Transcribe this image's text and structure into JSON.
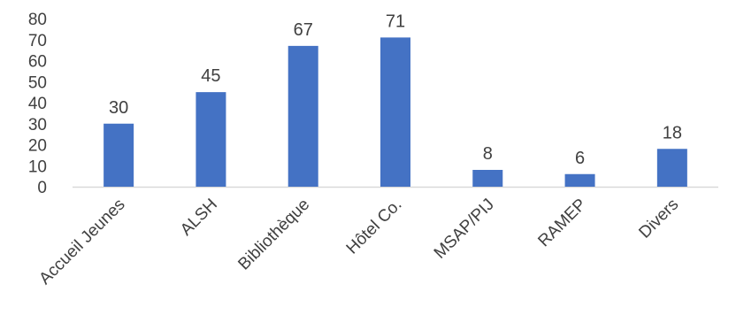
{
  "chart_data": {
    "type": "bar",
    "categories": [
      "Accueil Jeunes",
      "ALSH",
      "Bibliothèque",
      "Hôtel Co.",
      "MSAP/PIJ",
      "RAMEP",
      "Divers"
    ],
    "values": [
      30,
      45,
      67,
      71,
      8,
      6,
      18
    ],
    "data_labels": [
      "30",
      "45",
      "67",
      "71",
      "8",
      "6",
      "18"
    ],
    "ylim": [
      0,
      80
    ],
    "yticks": [
      "0",
      "10",
      "20",
      "30",
      "40",
      "50",
      "60",
      "70",
      "80"
    ],
    "grid": false,
    "legend": "none",
    "colors": {
      "bar": "#4472C4",
      "axis": "#D9D9D9",
      "text": "#404040"
    }
  }
}
